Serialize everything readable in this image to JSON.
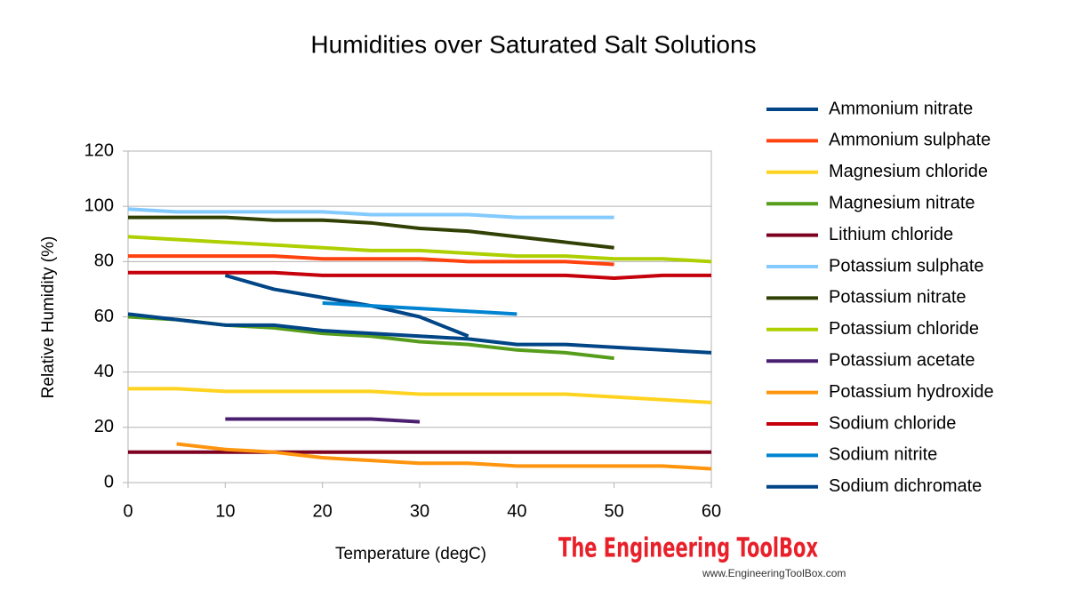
{
  "chart_data": {
    "type": "line",
    "title": "Humidities over Saturated Salt Solutions",
    "x_label": "Temperature (degC)",
    "y_label": "Relative Humidity (%)",
    "x": [
      0,
      5,
      10,
      15,
      20,
      25,
      30,
      35,
      40,
      45,
      50,
      55,
      60
    ],
    "xlim": [
      0,
      60
    ],
    "xticks": [
      0,
      10,
      20,
      30,
      40,
      50,
      60
    ],
    "ylim": [
      0,
      120
    ],
    "yticks": [
      0,
      20,
      40,
      60,
      80,
      100,
      120
    ],
    "grid": true,
    "legend": "right",
    "series": [
      {
        "name": "Ammonium nitrate",
        "color": "#004586",
        "values": [
          null,
          null,
          75,
          70,
          67,
          64,
          60,
          53,
          null,
          null,
          null,
          null,
          null
        ]
      },
      {
        "name": "Ammonium sulphate",
        "color": "#ff420e",
        "values": [
          82,
          82,
          82,
          82,
          81,
          81,
          81,
          80,
          80,
          80,
          79,
          null,
          null
        ]
      },
      {
        "name": "Magnesium chloride",
        "color": "#ffd320",
        "values": [
          34,
          34,
          33,
          33,
          33,
          33,
          32,
          32,
          32,
          32,
          31,
          30,
          29
        ]
      },
      {
        "name": "Magnesium nitrate",
        "color": "#579d1c",
        "values": [
          60,
          59,
          57,
          56,
          54,
          53,
          51,
          50,
          48,
          47,
          45,
          null,
          null
        ]
      },
      {
        "name": "Lithium chloride",
        "color": "#7e0021",
        "values": [
          11,
          11,
          11,
          11,
          11,
          11,
          11,
          11,
          11,
          11,
          11,
          11,
          11
        ]
      },
      {
        "name": "Potassium sulphate",
        "color": "#83caff",
        "values": [
          99,
          98,
          98,
          98,
          98,
          97,
          97,
          97,
          96,
          96,
          96,
          null,
          null
        ]
      },
      {
        "name": "Potassium nitrate",
        "color": "#314004",
        "values": [
          96,
          96,
          96,
          95,
          95,
          94,
          92,
          91,
          89,
          87,
          85,
          null,
          null
        ]
      },
      {
        "name": "Potassium chloride",
        "color": "#aecf00",
        "values": [
          89,
          88,
          87,
          86,
          85,
          84,
          84,
          83,
          82,
          82,
          81,
          81,
          80
        ]
      },
      {
        "name": "Potassium acetate",
        "color": "#4b1f6f",
        "values": [
          null,
          null,
          23,
          23,
          23,
          23,
          22,
          null,
          null,
          null,
          null,
          null,
          null
        ]
      },
      {
        "name": "Potassium hydroxide",
        "color": "#ff950e",
        "values": [
          null,
          14,
          12,
          11,
          9,
          8,
          7,
          7,
          6,
          6,
          6,
          6,
          5
        ]
      },
      {
        "name": "Sodium chloride",
        "color": "#c5000b",
        "values": [
          76,
          76,
          76,
          76,
          75,
          75,
          75,
          75,
          75,
          75,
          74,
          75,
          75
        ]
      },
      {
        "name": "Sodium nitrite",
        "color": "#0084d1",
        "values": [
          null,
          null,
          null,
          null,
          65,
          64,
          63,
          62,
          61,
          null,
          null,
          null,
          null
        ]
      },
      {
        "name": "Sodium dichromate",
        "color": "#004586",
        "values": [
          61,
          59,
          57,
          57,
          55,
          54,
          53,
          52,
          50,
          50,
          49,
          48,
          47
        ]
      }
    ],
    "watermark": "The Engineering ToolBox",
    "watermark_url": "www.EngineeringToolBox.com"
  }
}
